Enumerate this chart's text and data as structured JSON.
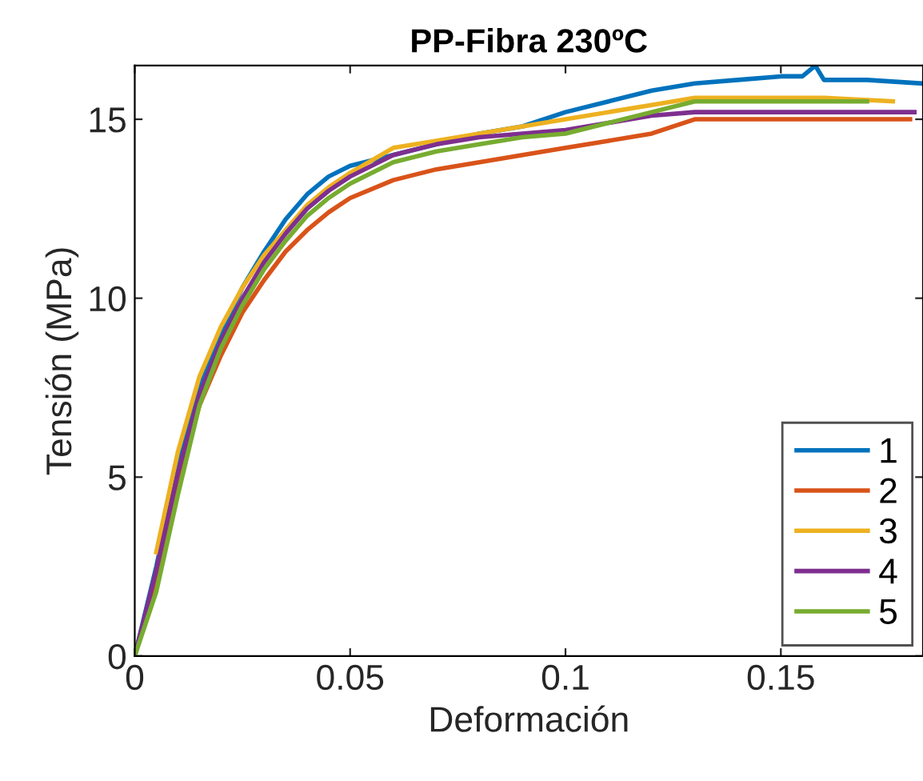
{
  "chart_data": {
    "type": "line",
    "title": "PP-Fibra 230ºC",
    "xlabel": "Deformación",
    "ylabel": "Tensión (MPa)",
    "xlim": [
      0,
      0.183
    ],
    "ylim": [
      0,
      16.5
    ],
    "xticks": [
      0,
      0.05,
      0.1,
      0.15
    ],
    "yticks": [
      0,
      5,
      10,
      15
    ],
    "grid": false,
    "legend": "bottom right",
    "series": [
      {
        "name": "1",
        "color": "#0072bd",
        "x": [
          0,
          0.005,
          0.01,
          0.015,
          0.02,
          0.025,
          0.03,
          0.035,
          0.04,
          0.045,
          0.05,
          0.06,
          0.07,
          0.08,
          0.09,
          0.1,
          0.11,
          0.12,
          0.13,
          0.14,
          0.15,
          0.155,
          0.158,
          0.16,
          0.17,
          0.183
        ],
        "values": [
          0,
          2.5,
          5.3,
          7.5,
          9.0,
          10.3,
          11.3,
          12.2,
          12.9,
          13.4,
          13.7,
          14.0,
          14.3,
          14.6,
          14.8,
          15.2,
          15.5,
          15.8,
          16.0,
          16.1,
          16.2,
          16.2,
          16.5,
          16.1,
          16.1,
          16.0
        ]
      },
      {
        "name": "2",
        "color": "#d95319",
        "x": [
          0,
          0.005,
          0.01,
          0.015,
          0.02,
          0.025,
          0.03,
          0.035,
          0.04,
          0.045,
          0.05,
          0.06,
          0.07,
          0.08,
          0.09,
          0.1,
          0.11,
          0.12,
          0.13,
          0.14,
          0.15,
          0.16,
          0.17,
          0.18
        ],
        "values": [
          0,
          2.2,
          4.8,
          7.0,
          8.4,
          9.6,
          10.5,
          11.3,
          11.9,
          12.4,
          12.8,
          13.3,
          13.6,
          13.8,
          14.0,
          14.2,
          14.4,
          14.6,
          15.0,
          15.0,
          15.0,
          15.0,
          15.0,
          15.0
        ]
      },
      {
        "name": "3",
        "color": "#edb120",
        "x": [
          0.005,
          0.01,
          0.015,
          0.02,
          0.025,
          0.03,
          0.035,
          0.04,
          0.045,
          0.05,
          0.06,
          0.07,
          0.08,
          0.09,
          0.1,
          0.11,
          0.12,
          0.13,
          0.14,
          0.15,
          0.16,
          0.176
        ],
        "values": [
          2.9,
          5.7,
          7.8,
          9.2,
          10.3,
          11.2,
          11.9,
          12.6,
          13.1,
          13.5,
          14.2,
          14.4,
          14.6,
          14.8,
          15.0,
          15.2,
          15.4,
          15.6,
          15.6,
          15.6,
          15.6,
          15.5
        ]
      },
      {
        "name": "4",
        "color": "#7e2f8e",
        "x": [
          0,
          0.005,
          0.01,
          0.015,
          0.02,
          0.025,
          0.03,
          0.035,
          0.04,
          0.045,
          0.05,
          0.06,
          0.07,
          0.08,
          0.09,
          0.1,
          0.11,
          0.12,
          0.13,
          0.14,
          0.15,
          0.16,
          0.17,
          0.181
        ],
        "values": [
          0,
          2.4,
          5.1,
          7.3,
          8.8,
          10.0,
          11.0,
          11.8,
          12.5,
          13.0,
          13.4,
          14.0,
          14.3,
          14.5,
          14.6,
          14.7,
          14.9,
          15.1,
          15.2,
          15.2,
          15.2,
          15.2,
          15.2,
          15.2
        ]
      },
      {
        "name": "5",
        "color": "#77ac30",
        "x": [
          0,
          0.005,
          0.01,
          0.015,
          0.02,
          0.025,
          0.03,
          0.035,
          0.04,
          0.045,
          0.05,
          0.06,
          0.07,
          0.08,
          0.09,
          0.1,
          0.11,
          0.12,
          0.13,
          0.14,
          0.15,
          0.16,
          0.17
        ],
        "values": [
          0,
          1.8,
          4.5,
          7.0,
          8.6,
          9.8,
          10.8,
          11.6,
          12.3,
          12.8,
          13.2,
          13.8,
          14.1,
          14.3,
          14.5,
          14.6,
          14.9,
          15.2,
          15.5,
          15.5,
          15.5,
          15.5,
          15.5
        ]
      }
    ]
  }
}
